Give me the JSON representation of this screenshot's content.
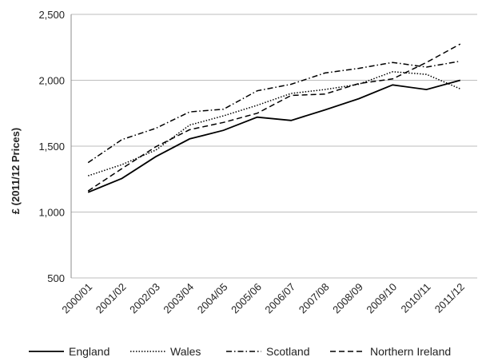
{
  "chart_data": {
    "type": "line",
    "title": "",
    "xlabel": "",
    "ylabel": "£ (2011/12 Prices)",
    "ylim": [
      500,
      2500
    ],
    "yticks": [
      500,
      1000,
      1500,
      2000,
      2500
    ],
    "ytick_labels": [
      "500",
      "1,000",
      "1,500",
      "2,000",
      "2,500"
    ],
    "grid": "horizontal",
    "legend_position": "bottom",
    "categories": [
      "2000/01",
      "2001/02",
      "2002/03",
      "2003/04",
      "2004/05",
      "2005/06",
      "2006/07",
      "2007/08",
      "2008/09",
      "2009/10",
      "2010/11",
      "2011/12"
    ],
    "series": [
      {
        "name": "England",
        "style": "solid",
        "color": "#000000",
        "values": [
          1150,
          1255,
          1420,
          1555,
          1620,
          1720,
          1695,
          1775,
          1860,
          1965,
          1930,
          2000
        ]
      },
      {
        "name": "Wales",
        "style": "dotted",
        "color": "#000000",
        "values": [
          1275,
          1360,
          1470,
          1660,
          1730,
          1810,
          1900,
          1930,
          1970,
          2065,
          2045,
          1935
        ]
      },
      {
        "name": "Scotland",
        "style": "dashdot",
        "color": "#000000",
        "values": [
          1375,
          1550,
          1635,
          1760,
          1780,
          1920,
          1970,
          2055,
          2090,
          2135,
          2100,
          2145
        ]
      },
      {
        "name": "Northern Ireland",
        "style": "dashed",
        "color": "#000000",
        "values": [
          1160,
          1330,
          1495,
          1625,
          1680,
          1750,
          1885,
          1895,
          1975,
          2010,
          2135,
          2275
        ]
      }
    ]
  }
}
